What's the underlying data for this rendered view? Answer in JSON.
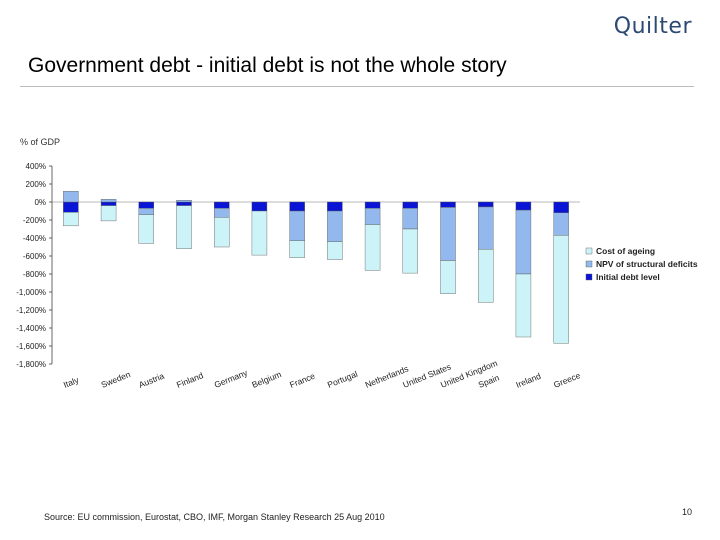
{
  "header": {
    "brand": "Quilter",
    "title": "Government debt - initial debt is not the whole story"
  },
  "footer": {
    "source": "Source: EU commission, Eurostat, CBO, IMF, Morgan Stanley Research 25 Aug 2010",
    "page_number": "10"
  },
  "chart_data": {
    "type": "bar",
    "stacked": true,
    "ylabel": "% of GDP",
    "ylim": [
      -1800,
      400
    ],
    "yticks": [
      "400%",
      "200%",
      "0%",
      "-200%",
      "-400%",
      "-600%",
      "-800%",
      "-1,000%",
      "-1,200%",
      "-1,400%",
      "-1,600%",
      "-1,800%"
    ],
    "ytick_values": [
      400,
      200,
      0,
      -200,
      -400,
      -600,
      -800,
      -1000,
      -1200,
      -1400,
      -1600,
      -1800
    ],
    "grid": false,
    "legend_position": "right",
    "categories": [
      "Italy",
      "Sweden",
      "Austria",
      "Finland",
      "Germany",
      "Belgium",
      "France",
      "Portugal",
      "Netherlands",
      "United States",
      "United Kingdom",
      "Spain",
      "Ireland",
      "Greece"
    ],
    "series": [
      {
        "name": "Initial debt level",
        "color": "#0a14d4",
        "values": [
          -115,
          -40,
          -70,
          -40,
          -70,
          -100,
          -100,
          -100,
          -70,
          -70,
          -60,
          -55,
          -90,
          -120
        ]
      },
      {
        "name": "NPV of structural deficits",
        "color": "#93b8ee",
        "values": [
          120,
          30,
          -70,
          20,
          -100,
          0,
          -330,
          -340,
          -180,
          -230,
          -590,
          -470,
          -710,
          -250
        ]
      },
      {
        "name": "Cost of ageing",
        "color": "#ccf4f8",
        "values": [
          -150,
          -170,
          -320,
          -480,
          -330,
          -490,
          -190,
          -200,
          -510,
          -490,
          -370,
          -590,
          -700,
          -1200
        ]
      }
    ]
  }
}
